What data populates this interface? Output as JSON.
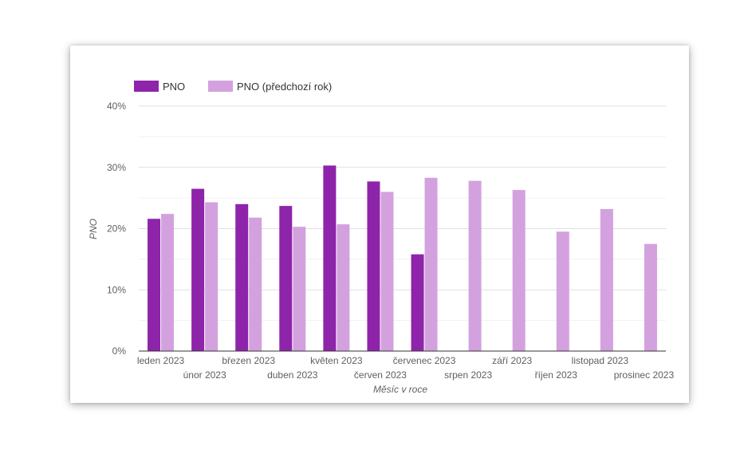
{
  "chart_data": {
    "type": "bar",
    "title": "",
    "xlabel": "Měsíc v roce",
    "ylabel": "PNO",
    "ylim": [
      0,
      40
    ],
    "yticks": [
      0,
      10,
      20,
      30,
      40
    ],
    "ytick_labels": [
      "0%",
      "10%",
      "20%",
      "30%",
      "40%"
    ],
    "y_unit": "%",
    "grid": true,
    "legend_position": "top-left",
    "categories": [
      "leden 2023",
      "únor 2023",
      "březen 2023",
      "duben 2023",
      "květen 2023",
      "červen 2023",
      "červenec 2023",
      "srpen 2023",
      "září 2023",
      "říjen 2023",
      "listopad 2023",
      "prosinec 2023"
    ],
    "series": [
      {
        "name": "PNO",
        "color": "#8e24aa",
        "values": [
          21.6,
          26.5,
          24.0,
          23.7,
          30.3,
          27.7,
          15.8,
          null,
          null,
          null,
          null,
          null
        ]
      },
      {
        "name": "PNO (předchozí rok)",
        "color": "#d4a1df",
        "values": [
          22.4,
          24.3,
          21.8,
          20.3,
          20.7,
          26.0,
          28.3,
          27.8,
          26.3,
          19.5,
          23.2,
          17.5
        ]
      }
    ]
  }
}
